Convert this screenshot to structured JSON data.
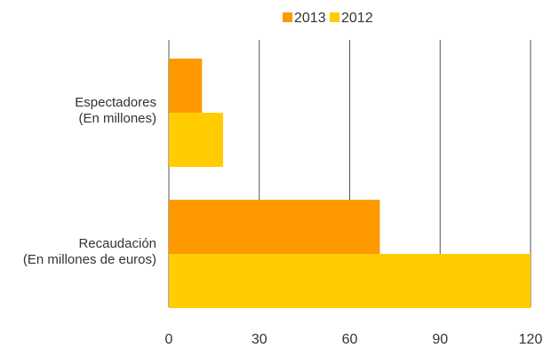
{
  "chart_data": {
    "type": "bar",
    "orientation": "horizontal",
    "categories": [
      [
        "Espectadores",
        "(En millones)"
      ],
      [
        "Recaudación",
        "(En millones de euros)"
      ]
    ],
    "series": [
      {
        "name": "2013",
        "color": "#FF9900",
        "values": [
          11,
          70
        ]
      },
      {
        "name": "2012",
        "color": "#FFCC00",
        "values": [
          18,
          120
        ]
      }
    ],
    "xlim": [
      0,
      120
    ],
    "xticks": [
      0,
      30,
      60,
      90,
      120
    ],
    "grid": "vertical",
    "legend_position": "top-center",
    "title": "",
    "xlabel": "",
    "ylabel": ""
  }
}
